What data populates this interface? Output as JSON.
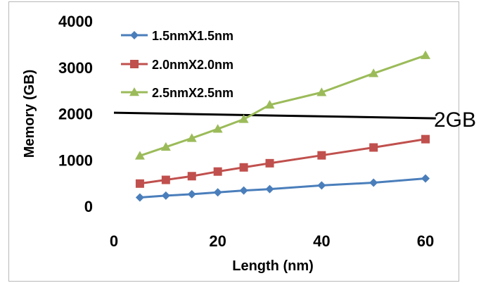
{
  "chart_data": {
    "type": "line",
    "title": "",
    "xlabel": "Length (nm)",
    "ylabel": "Memory (GB)",
    "xlim": [
      0,
      60
    ],
    "ylim": [
      0,
      4000
    ],
    "x_ticks": [
      0,
      20,
      40,
      60
    ],
    "y_ticks": [
      0,
      1000,
      2000,
      3000,
      4000
    ],
    "grid": false,
    "legend_position": "top-left",
    "x": [
      5,
      10,
      15,
      20,
      25,
      30,
      40,
      50,
      60
    ],
    "series": [
      {
        "name": "1.5nmX1.5nm",
        "color": "#4a7ebb",
        "marker": "diamond",
        "values": [
          190,
          230,
          260,
          300,
          340,
          370,
          450,
          510,
          600
        ]
      },
      {
        "name": "2.0nmX2.0nm",
        "color": "#c0504d",
        "marker": "square",
        "values": [
          490,
          570,
          650,
          750,
          840,
          930,
          1100,
          1270,
          1450
        ]
      },
      {
        "name": "2.5nmX2.5nm",
        "color": "#9bbb59",
        "marker": "triangle",
        "values": [
          1090,
          1280,
          1470,
          1670,
          1880,
          2190,
          2460,
          2870,
          3260
        ]
      }
    ],
    "reference_line": {
      "label": "2GB",
      "y_start": 1990,
      "y_end": 1900,
      "x_start": 0,
      "x_end": 62,
      "color": "#000000"
    }
  }
}
